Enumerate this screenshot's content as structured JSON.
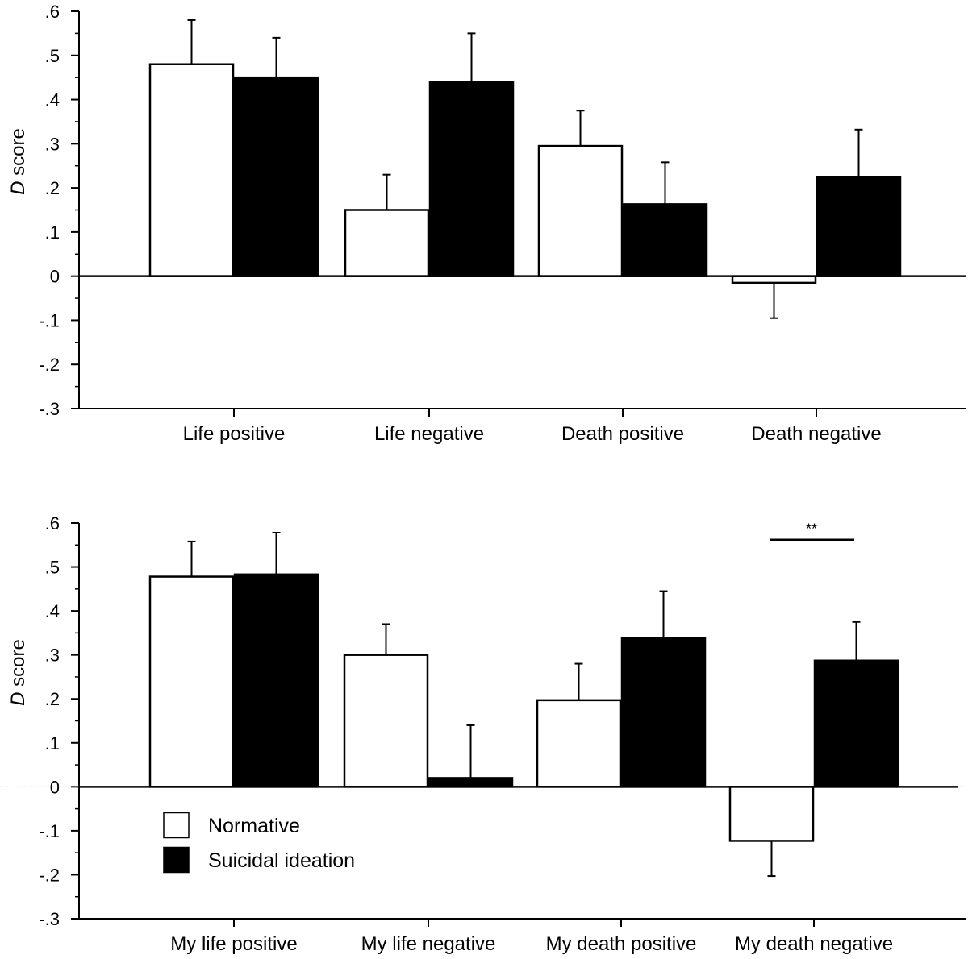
{
  "chart_data": [
    {
      "type": "bar",
      "categories": [
        "Life positive",
        "Life negative",
        "Death positive",
        "Death negative"
      ],
      "series": [
        {
          "name": "Normative",
          "values": [
            0.48,
            0.15,
            0.295,
            -0.015
          ],
          "errors": [
            0.1,
            0.08,
            0.08,
            0.08
          ],
          "fill": "#ffffff"
        },
        {
          "name": "Suicidal ideation",
          "values": [
            0.45,
            0.44,
            0.163,
            0.225
          ],
          "errors": [
            0.09,
            0.11,
            0.095,
            0.107
          ],
          "fill": "#000000"
        }
      ],
      "ylabel_italic": "D",
      "ylabel_rest": " score",
      "ylim": [
        -0.3,
        0.6
      ],
      "yticks": [
        ".6",
        ".5",
        ".4",
        ".3",
        ".2",
        ".1",
        "0",
        "-.1",
        "-.2",
        "-.3"
      ],
      "ytick_values": [
        0.6,
        0.5,
        0.4,
        0.3,
        0.2,
        0.1,
        0,
        -0.1,
        -0.2,
        -0.3
      ],
      "zero_line_dotted": false
    },
    {
      "type": "bar",
      "categories": [
        "My life positive",
        "My life negative",
        "My death positive",
        "My death negative"
      ],
      "series": [
        {
          "name": "Normative",
          "values": [
            0.478,
            0.3,
            0.197,
            -0.123
          ],
          "errors": [
            0.08,
            0.07,
            0.083,
            0.08
          ],
          "fill": "#ffffff"
        },
        {
          "name": "Suicidal ideation",
          "values": [
            0.483,
            0.02,
            0.338,
            0.287
          ],
          "errors": [
            0.095,
            0.12,
            0.107,
            0.088
          ],
          "fill": "#000000"
        }
      ],
      "ylabel_italic": "D",
      "ylabel_rest": " score",
      "ylim": [
        -0.3,
        0.6
      ],
      "yticks": [
        ".6",
        ".5",
        ".4",
        ".3",
        ".2",
        ".1",
        "0",
        "-.1",
        "-.2",
        "-.3"
      ],
      "ytick_values": [
        0.6,
        0.5,
        0.4,
        0.3,
        0.2,
        0.1,
        0,
        -0.1,
        -0.2,
        -0.3
      ],
      "zero_line_dotted": true,
      "significance": {
        "text": "**",
        "category_index": 3,
        "y": 0.562
      },
      "legend": [
        {
          "label": "Normative",
          "fill": "#ffffff"
        },
        {
          "label": "Suicidal ideation",
          "fill": "#000000"
        }
      ]
    }
  ]
}
